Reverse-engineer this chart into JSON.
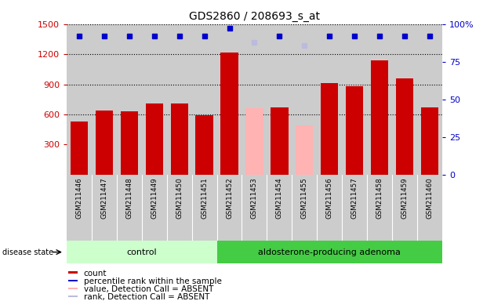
{
  "title": "GDS2860 / 208693_s_at",
  "samples": [
    "GSM211446",
    "GSM211447",
    "GSM211448",
    "GSM211449",
    "GSM211450",
    "GSM211451",
    "GSM211452",
    "GSM211453",
    "GSM211454",
    "GSM211455",
    "GSM211456",
    "GSM211457",
    "GSM211458",
    "GSM211459",
    "GSM211460"
  ],
  "values": [
    530,
    640,
    630,
    710,
    710,
    590,
    1220,
    660,
    670,
    490,
    910,
    880,
    1140,
    960,
    670
  ],
  "absent_mask": [
    0,
    0,
    0,
    0,
    0,
    0,
    0,
    1,
    0,
    1,
    0,
    0,
    0,
    0,
    0
  ],
  "ranks_pct": [
    92,
    92,
    92,
    92,
    92,
    92,
    97,
    88,
    92,
    86,
    92,
    92,
    92,
    92,
    92
  ],
  "absent_ranks_pct": [
    0,
    0,
    0,
    0,
    0,
    0,
    0,
    88,
    0,
    86,
    0,
    0,
    0,
    0,
    0
  ],
  "control_count": 6,
  "control_label": "control",
  "disease_label": "aldosterone-producing adenoma",
  "ylim_left": [
    0,
    1500
  ],
  "ylim_right": [
    0,
    100
  ],
  "yticks_left": [
    300,
    600,
    900,
    1200,
    1500
  ],
  "yticks_right": [
    0,
    25,
    50,
    75,
    100
  ],
  "bar_color_present": "#cc0000",
  "bar_color_absent": "#ffb3b3",
  "rank_color_present": "#0000cc",
  "rank_color_absent": "#bbbbdd",
  "control_bg": "#ccffcc",
  "disease_bg": "#44cc44",
  "sample_bg": "#cccccc",
  "plot_bg": "#ffffff",
  "legend_items": [
    "count",
    "percentile rank within the sample",
    "value, Detection Call = ABSENT",
    "rank, Detection Call = ABSENT"
  ],
  "legend_colors": [
    "#cc0000",
    "#0000cc",
    "#ffb3b3",
    "#bbbbdd"
  ],
  "grid_lines": [
    600,
    900,
    1200
  ],
  "dotted_line_at_1500": true
}
